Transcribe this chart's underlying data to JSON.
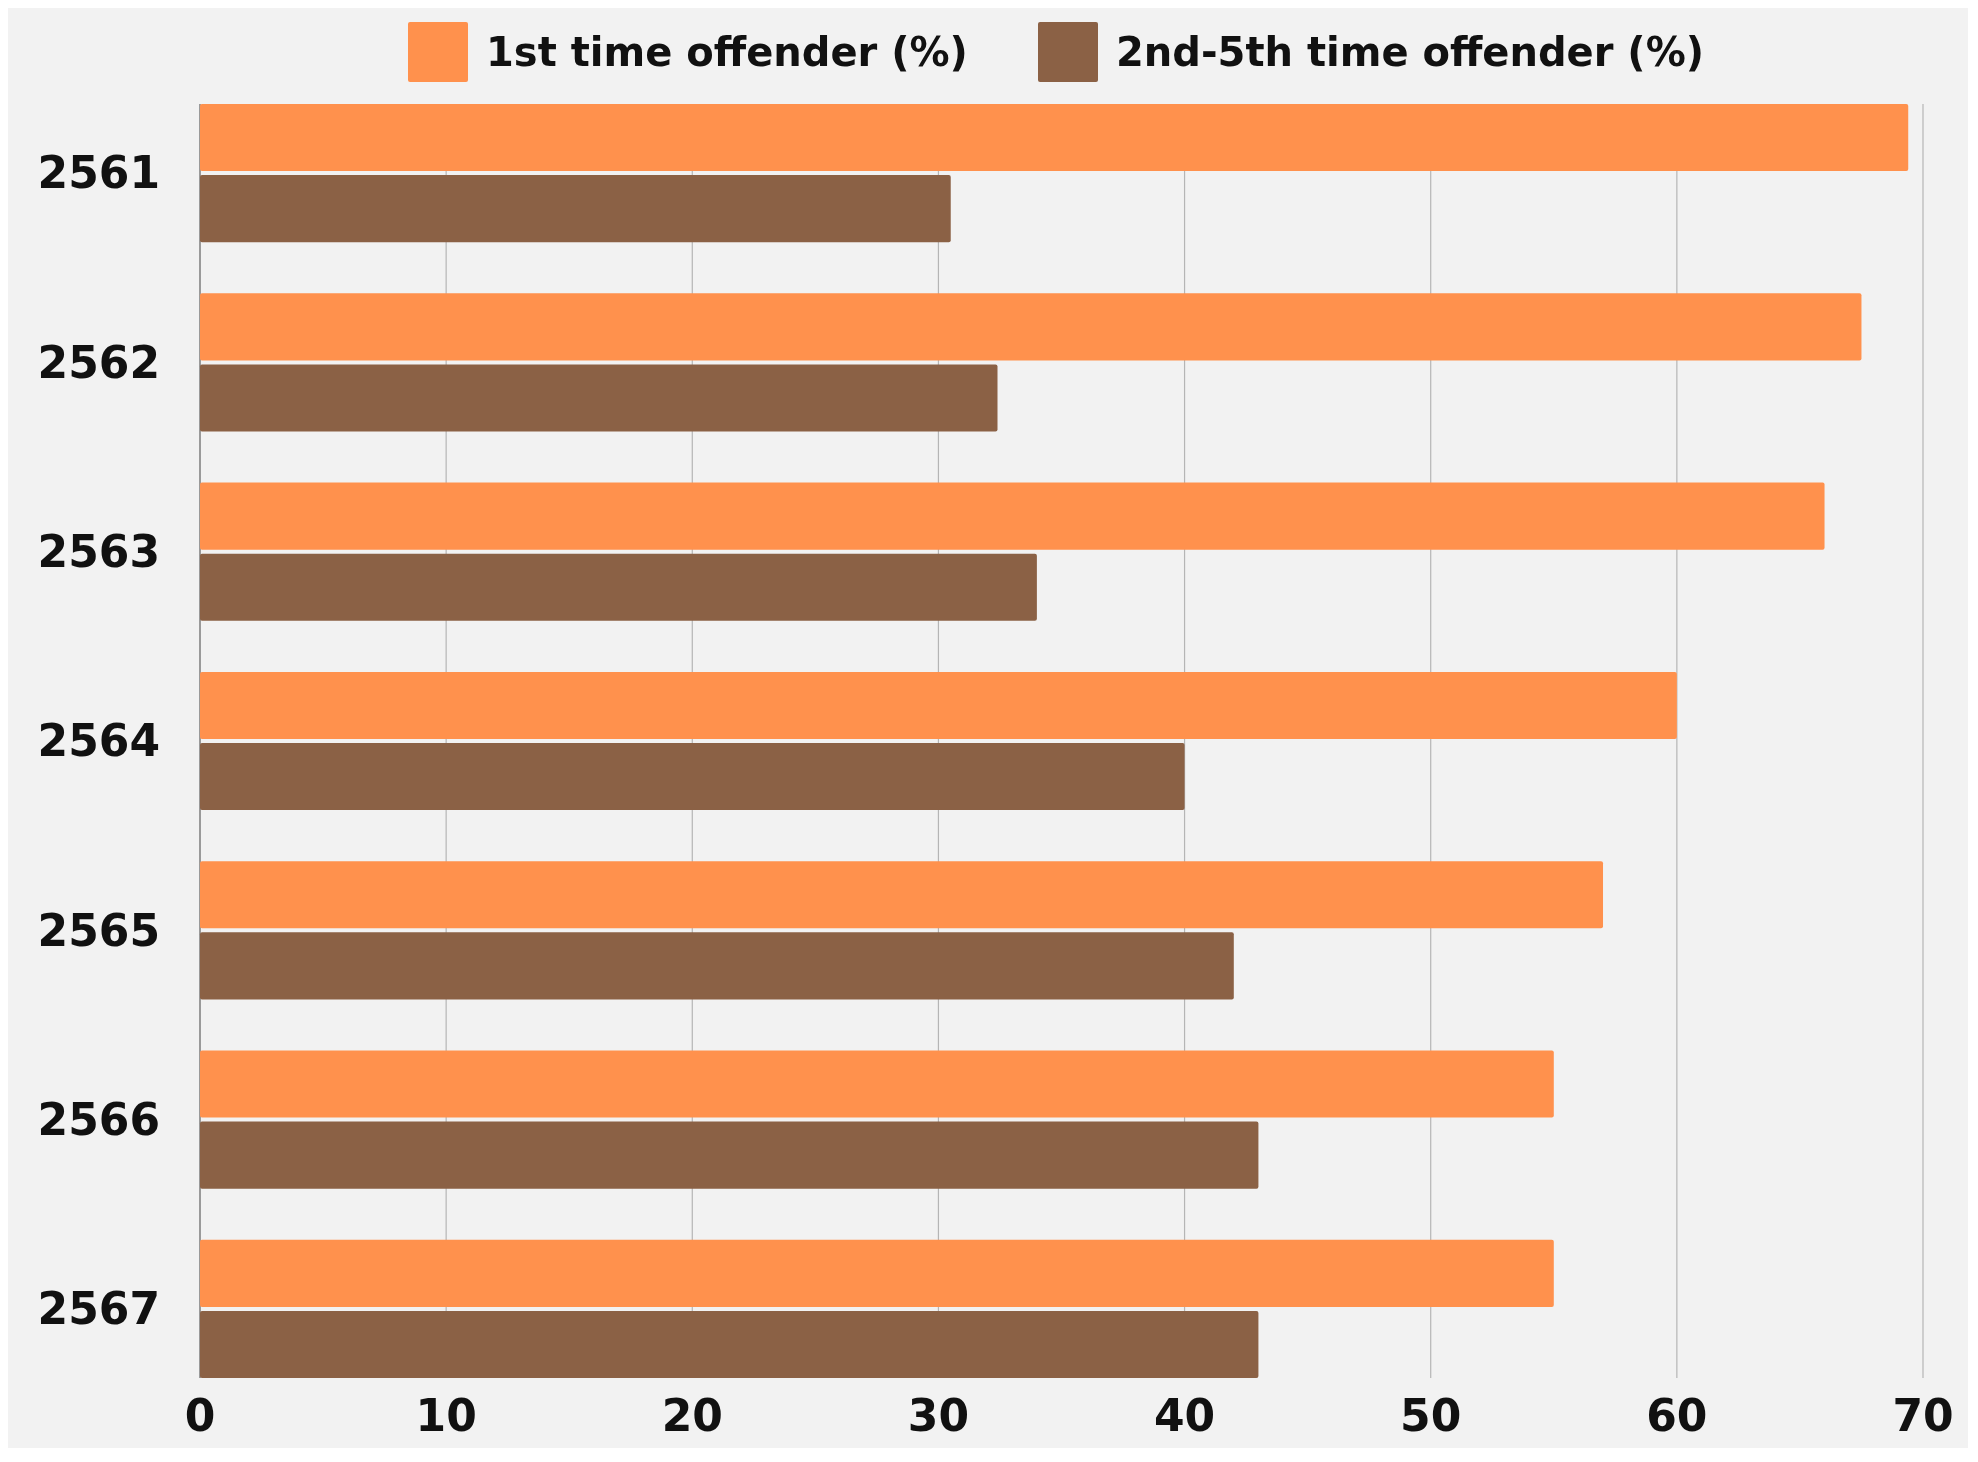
{
  "chart_data": {
    "type": "bar",
    "orientation": "horizontal",
    "categories": [
      "2561",
      "2562",
      "2563",
      "2564",
      "2565",
      "2566",
      "2567"
    ],
    "series": [
      {
        "name": "1st time offender (%)",
        "color": "#ff914d",
        "values": [
          69.4,
          67.5,
          66,
          60,
          57,
          55,
          55
        ]
      },
      {
        "name": "2nd-5th time offender (%)",
        "color": "#8b6145",
        "values": [
          30.5,
          32.4,
          34,
          40,
          42,
          43,
          43
        ]
      }
    ],
    "xlim": [
      0,
      70
    ],
    "xticks": [
      0,
      10,
      20,
      30,
      40,
      50,
      60,
      70
    ],
    "grid": "x",
    "legend": "top"
  }
}
